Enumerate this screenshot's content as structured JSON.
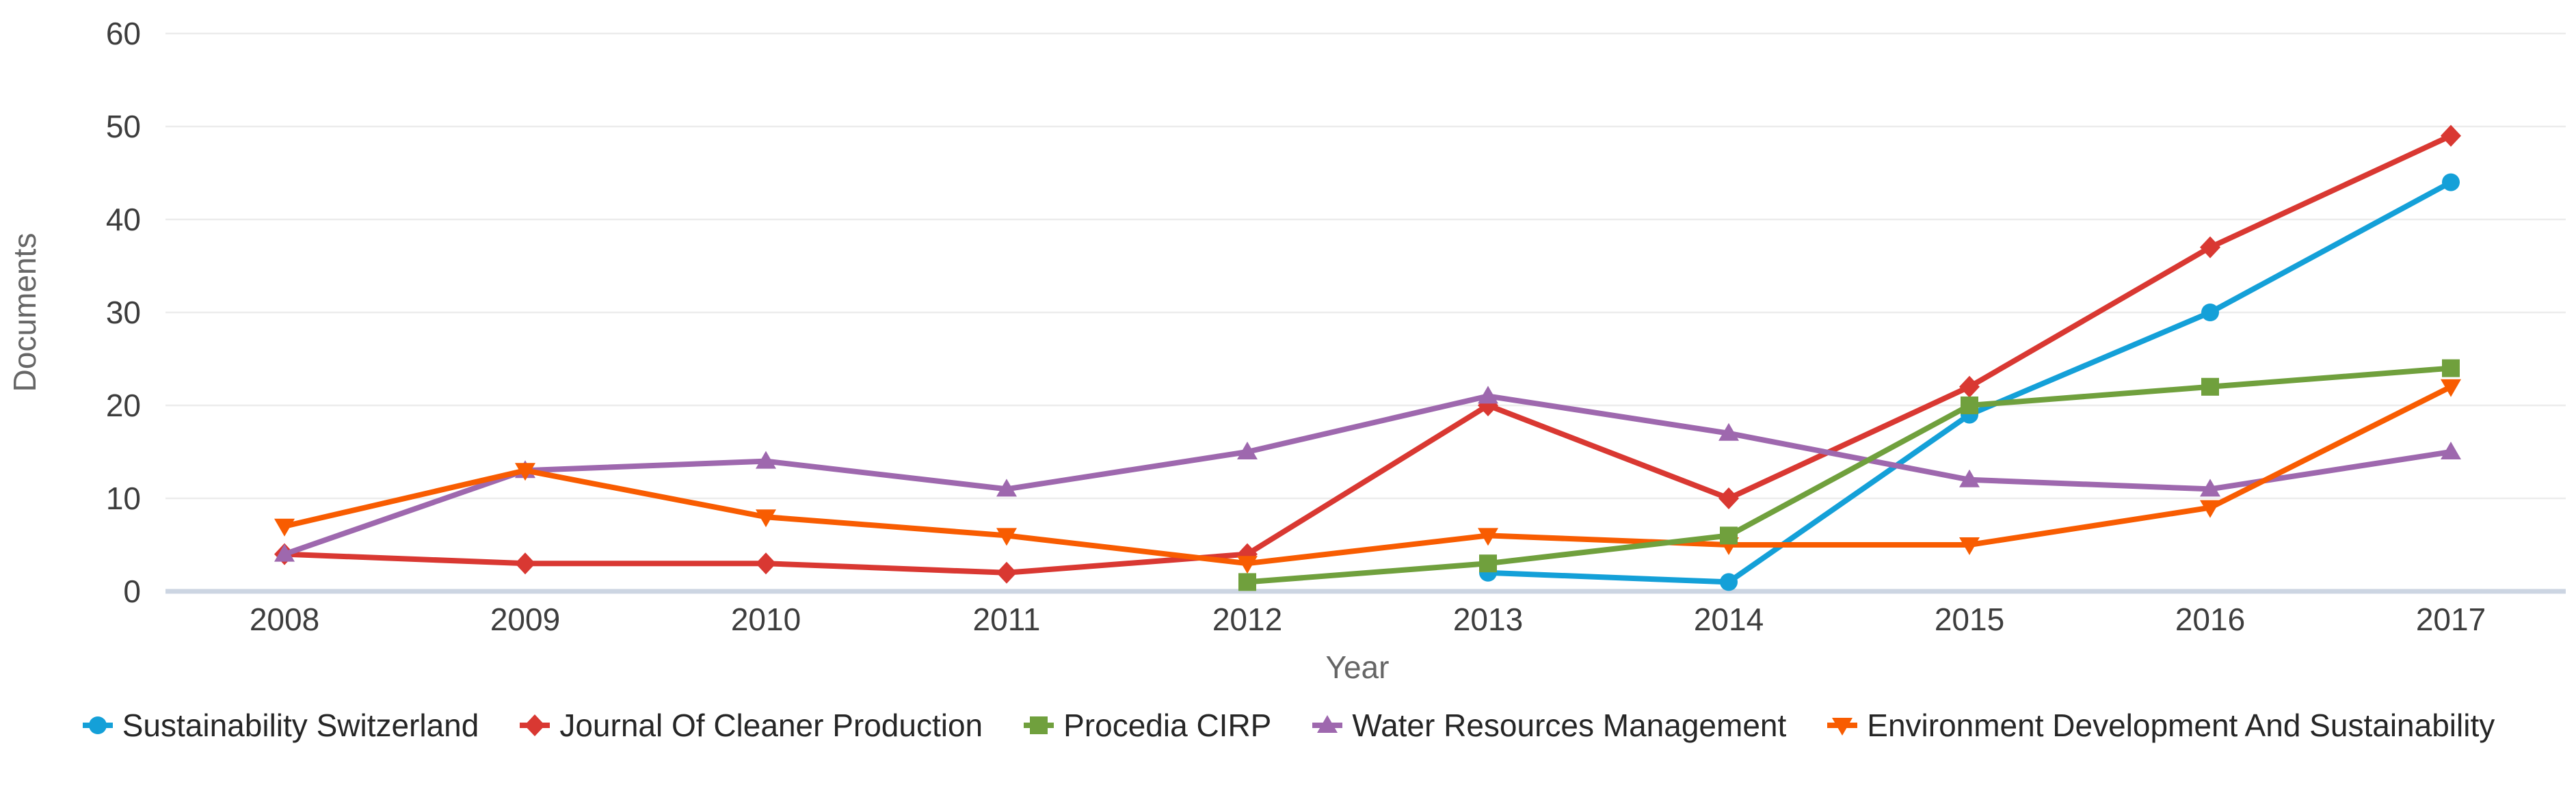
{
  "chart_data": {
    "type": "line",
    "title": "",
    "xlabel": "Year",
    "ylabel": "Documents",
    "categories": [
      "2008",
      "2009",
      "2010",
      "2011",
      "2012",
      "2013",
      "2014",
      "2015",
      "2016",
      "2017"
    ],
    "y_ticks": [
      0,
      10,
      20,
      30,
      40,
      50,
      60
    ],
    "ylim": [
      0,
      60
    ],
    "grid": "horizontal",
    "legend_position": "bottom-center",
    "series": [
      {
        "name": "Sustainability Switzerland",
        "color": "#14a0d8",
        "marker": "circle",
        "values": [
          null,
          null,
          null,
          null,
          null,
          2,
          1,
          19,
          30,
          44
        ]
      },
      {
        "name": "Journal Of Cleaner Production",
        "color": "#d93832",
        "marker": "diamond",
        "values": [
          4,
          3,
          3,
          2,
          4,
          20,
          10,
          22,
          37,
          49
        ]
      },
      {
        "name": "Procedia CIRP",
        "color": "#70a03d",
        "marker": "square",
        "values": [
          null,
          null,
          null,
          null,
          1,
          3,
          6,
          20,
          22,
          24
        ]
      },
      {
        "name": "Water Resources Management",
        "color": "#9e68ae",
        "marker": "triangle-up",
        "values": [
          4,
          13,
          14,
          11,
          15,
          21,
          17,
          12,
          11,
          15
        ]
      },
      {
        "name": "Environment Development And Sustainability",
        "color": "#f85c01",
        "marker": "triangle-down",
        "values": [
          7,
          13,
          8,
          6,
          3,
          6,
          5,
          5,
          9,
          22
        ]
      }
    ]
  },
  "colors": {
    "grid": "#ececec",
    "axis_line": "#ccd5e2",
    "tick_text": "#3d3d3d",
    "axis_title_text": "#666666",
    "legend_text": "#262626"
  }
}
